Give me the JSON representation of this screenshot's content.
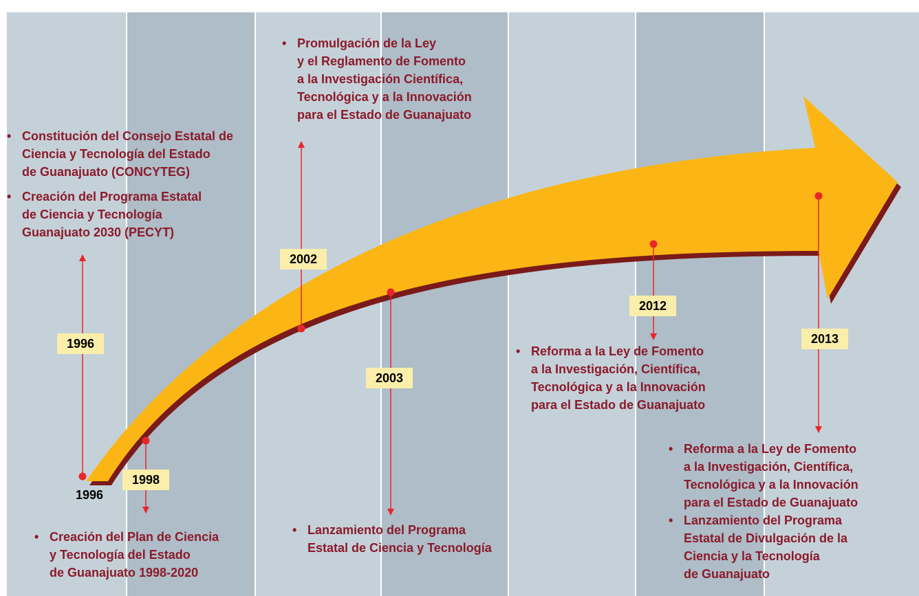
{
  "start_label": "1996",
  "events": [
    {
      "year": "1996",
      "bullets": [
        [
          "Constitución del Consejo Estatal de",
          "Ciencia y Tecnología del Estado",
          "de Guanajuato (CONCYTEG)"
        ],
        [
          "Creación del Programa Estatal",
          "de Ciencia y Tecnología",
          "Guanajuato 2030 (PECYT)"
        ]
      ]
    },
    {
      "year": "1998",
      "bullets": [
        [
          "Creación del Plan de Ciencia",
          "y Tecnología del Estado",
          "de Guanajuato 1998-2020"
        ]
      ]
    },
    {
      "year": "2002",
      "bullets": [
        [
          "Promulgación de la Ley",
          "y el Reglamento de Fomento",
          "a la Investigación Científica,",
          "Tecnológica y a la Innovación",
          "para el Estado de Guanajuato"
        ]
      ]
    },
    {
      "year": "2003",
      "bullets": [
        [
          "Lanzamiento del Programa",
          "Estatal de Ciencia y Tecnología"
        ]
      ]
    },
    {
      "year": "2012",
      "bullets": [
        [
          "Reforma a la Ley de Fomento",
          "a la Investigación, Científica,",
          "Tecnológica y a la Innovación",
          "para el Estado de Guanajuato"
        ]
      ]
    },
    {
      "year": "2013",
      "bullets": [
        [
          "Reforma a la Ley de Fomento",
          "a la Investigación, Científica,",
          "Tecnológica y a la Innovación",
          "para el Estado de Guanajuato"
        ],
        [
          "Lanzamiento del Programa",
          "Estatal de Divulgación de la",
          "Ciencia y la Tecnología",
          "de Guanajuato"
        ]
      ]
    }
  ]
}
